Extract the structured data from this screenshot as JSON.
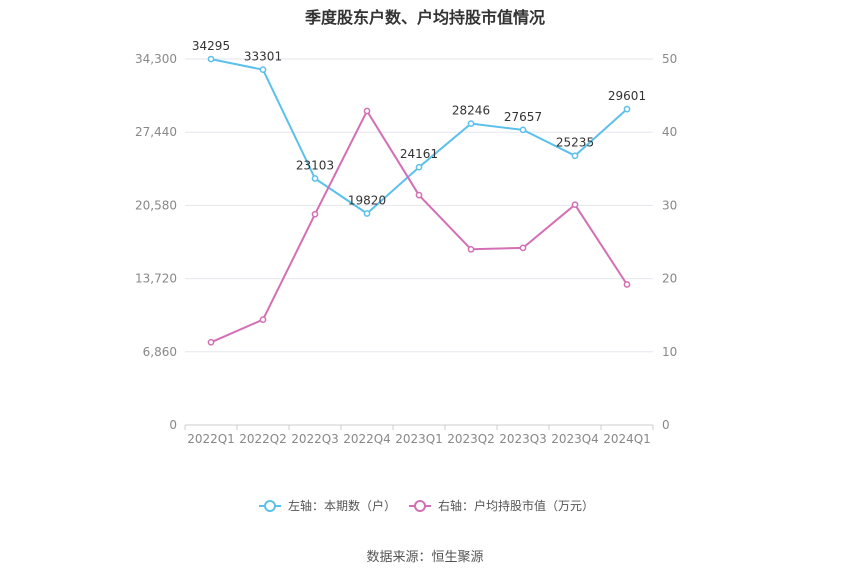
{
  "title": "季度股东户数、户均持股市值情况",
  "source": "数据来源：恒生聚源",
  "chart_data": {
    "type": "line",
    "title": "季度股东户数、户均持股市值情况",
    "categories": [
      "2022Q1",
      "2022Q2",
      "2022Q3",
      "2022Q4",
      "2023Q1",
      "2023Q2",
      "2023Q3",
      "2023Q4",
      "2024Q1"
    ],
    "y_left": {
      "ticks": [
        "0",
        "6,860",
        "13,720",
        "20,580",
        "27,440",
        "34,300"
      ],
      "min": 0,
      "max": 34300
    },
    "y_right": {
      "ticks": [
        "0",
        "10",
        "20",
        "30",
        "40",
        "50"
      ],
      "min": 0,
      "max": 50
    },
    "grid": true,
    "legend_position": "bottom",
    "series": [
      {
        "name": "左轴：本期数（户）",
        "axis": "left",
        "color": "#5bc0eb",
        "values": [
          34295,
          33301,
          23103,
          19820,
          24161,
          28246,
          27657,
          25235,
          29601
        ],
        "labels": [
          "34295",
          "33301",
          "23103",
          "19820",
          "24161",
          "28246",
          "27657",
          "25235",
          "29601"
        ]
      },
      {
        "name": "右轴：户均持股市值（万元）",
        "axis": "right",
        "color": "#d36fb5",
        "values": [
          11.3,
          14.4,
          28.8,
          42.9,
          31.4,
          24.0,
          24.2,
          30.1,
          19.2
        ]
      }
    ]
  }
}
